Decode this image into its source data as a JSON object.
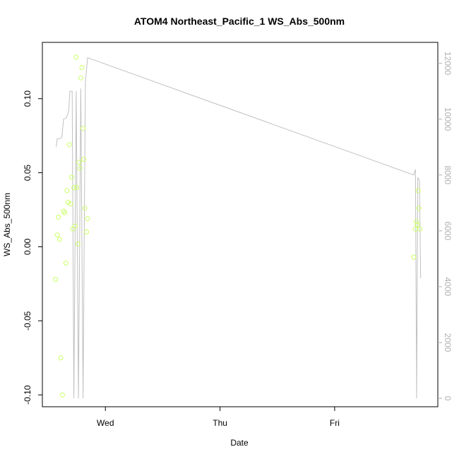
{
  "chart_data": {
    "type": "scatter",
    "title": "ATOM4 Northeast_Pacific_1 WS_Abs_500nm",
    "xlabel": "Date",
    "ylabel": "WS_Abs_500nm",
    "x_axis": {
      "type": "date",
      "ticks": [
        {
          "label": "Wed",
          "value": 1.0
        },
        {
          "label": "Thu",
          "value": 2.0
        },
        {
          "label": "Fri",
          "value": 3.0
        }
      ],
      "range": [
        0.45,
        3.9
      ]
    },
    "y_left": {
      "ylim": [
        -0.108,
        0.138
      ],
      "ticks": [
        -0.1,
        -0.05,
        0.0,
        0.05,
        0.1
      ],
      "tick_labels": [
        "-0.10",
        "-0.05",
        "0.00",
        "0.05",
        "0.10"
      ]
    },
    "y_right": {
      "ylim": [
        -300,
        12750
      ],
      "ticks": [
        0,
        2000,
        4000,
        6000,
        8000,
        10000,
        12000
      ],
      "tick_labels": [
        "0",
        "2000",
        "4000",
        "6000",
        "8000",
        "10000",
        "12000"
      ],
      "color": "#b0b0b0"
    },
    "grid": false,
    "series": [
      {
        "type": "scatter",
        "axis": "left",
        "color": "#ccff66",
        "points": [
          [
            0.565,
            -0.022
          ],
          [
            0.58,
            0.008
          ],
          [
            0.59,
            0.02
          ],
          [
            0.6,
            0.005
          ],
          [
            0.61,
            -0.075
          ],
          [
            0.625,
            -0.1
          ],
          [
            0.635,
            0.024
          ],
          [
            0.645,
            0.023
          ],
          [
            0.655,
            -0.011
          ],
          [
            0.665,
            0.038
          ],
          [
            0.675,
            0.03
          ],
          [
            0.685,
            0.069
          ],
          [
            0.695,
            0.029
          ],
          [
            0.705,
            0.047
          ],
          [
            0.715,
            0.012
          ],
          [
            0.725,
            0.04
          ],
          [
            0.735,
            0.014
          ],
          [
            0.745,
            0.128
          ],
          [
            0.75,
            0.04
          ],
          [
            0.76,
            0.002
          ],
          [
            0.77,
            0.057
          ],
          [
            0.778,
            0.053
          ],
          [
            0.785,
            0.114
          ],
          [
            0.795,
            0.121
          ],
          [
            0.805,
            0.08
          ],
          [
            0.81,
            0.059
          ],
          [
            0.82,
            0.026
          ],
          [
            0.835,
            0.01
          ],
          [
            0.845,
            0.019
          ],
          [
            3.69,
            -0.007
          ],
          [
            3.705,
            0.012
          ],
          [
            3.712,
            0.017
          ],
          [
            3.72,
            0.015
          ],
          [
            3.728,
            0.038
          ],
          [
            3.735,
            0.026
          ],
          [
            3.745,
            0.012
          ]
        ]
      },
      {
        "type": "line",
        "axis": "right",
        "color": "#c0c0c0",
        "points": [
          [
            0.57,
            9000
          ],
          [
            0.58,
            9300
          ],
          [
            0.6,
            9300
          ],
          [
            0.62,
            9350
          ],
          [
            0.635,
            10000
          ],
          [
            0.66,
            10050
          ],
          [
            0.68,
            10300
          ],
          [
            0.69,
            11000
          ],
          [
            0.71,
            11000
          ],
          [
            0.725,
            0
          ],
          [
            0.745,
            11000
          ],
          [
            0.765,
            0
          ],
          [
            0.785,
            11100
          ],
          [
            0.805,
            0
          ],
          [
            0.825,
            11300
          ],
          [
            0.84,
            12000
          ],
          [
            0.845,
            12200
          ],
          [
            3.69,
            8000
          ],
          [
            3.705,
            8200
          ],
          [
            3.715,
            0
          ],
          [
            3.725,
            7900
          ],
          [
            3.74,
            7800
          ],
          [
            3.75,
            4300
          ]
        ]
      }
    ]
  }
}
